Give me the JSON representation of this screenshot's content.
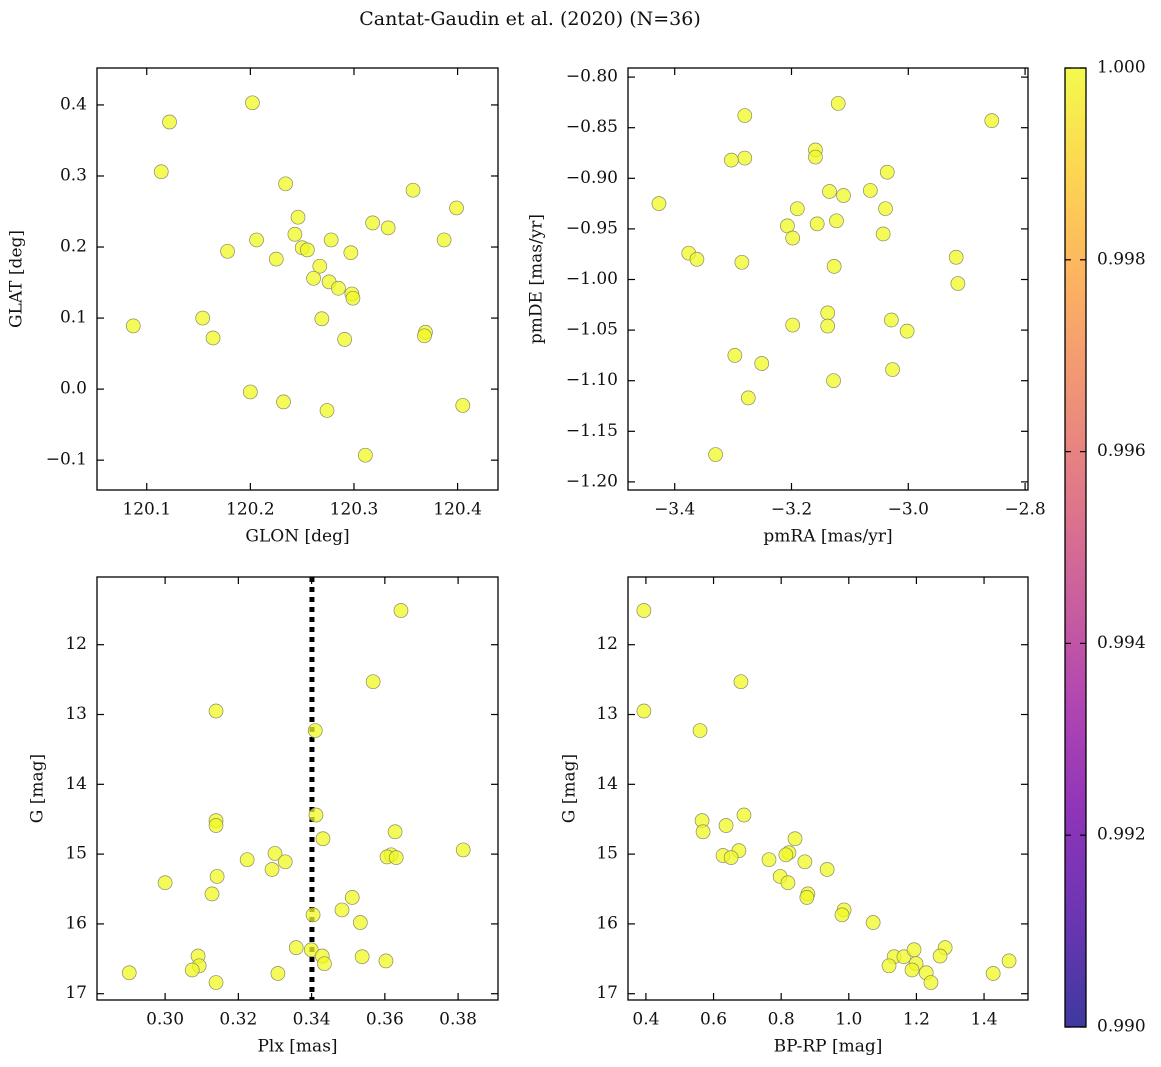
{
  "title": "Cantat-Gaudin et al. (2020) (N=36)",
  "chart_data": [
    {
      "type": "scatter",
      "xlabel": "GLON [deg]",
      "ylabel": "GLAT [deg]",
      "color": "#f0f921",
      "xlim": [
        120.052,
        120.439
      ],
      "ylim": [
        -0.142,
        0.452
      ],
      "xticks": [
        120.1,
        120.2,
        120.3,
        120.4
      ],
      "yticks": [
        {
          "value": -0.1,
          "label": "−0.1"
        },
        {
          "value": 0,
          "label": "0.0"
        },
        0.1,
        0.2,
        0.3,
        0.4
      ],
      "x": [
        120.202,
        120.122,
        120.114,
        120.234,
        120.357,
        120.399,
        120.246,
        120.318,
        120.333,
        120.243,
        120.25,
        120.255,
        120.206,
        120.278,
        120.387,
        120.178,
        120.297,
        120.225,
        120.267,
        120.261,
        120.276,
        120.285,
        120.298,
        120.299,
        120.269,
        120.154,
        120.087,
        120.369,
        120.368,
        120.164,
        120.291,
        120.2,
        120.232,
        120.274,
        120.405,
        120.311
      ],
      "y": [
        0.403,
        0.376,
        0.306,
        0.289,
        0.28,
        0.255,
        0.242,
        0.234,
        0.227,
        0.218,
        0.199,
        0.196,
        0.21,
        0.21,
        0.21,
        0.194,
        0.192,
        0.183,
        0.173,
        0.156,
        0.151,
        0.142,
        0.134,
        0.128,
        0.099,
        0.1,
        0.089,
        0.08,
        0.075,
        0.072,
        0.07,
        -0.004,
        -0.018,
        -0.03,
        -0.023,
        -0.093
      ]
    },
    {
      "type": "scatter",
      "xlabel": "pmRA [mas/yr]",
      "ylabel": "pmDE [mas/yr]",
      "color": "#f0f921",
      "xlim": [
        -3.48,
        -2.795
      ],
      "ylim": [
        -1.208,
        -0.791
      ],
      "xticks": [
        {
          "value": -3.4,
          "label": "−3.4"
        },
        {
          "value": -3.2,
          "label": "−3.2"
        },
        {
          "value": -3,
          "label": "−3.0"
        },
        {
          "value": -2.8,
          "label": "−2.8"
        }
      ],
      "yticks": [
        {
          "value": -1.2,
          "label": "−1.20"
        },
        {
          "value": -1.15,
          "label": "−1.15"
        },
        {
          "value": -1.1,
          "label": "−1.10"
        },
        {
          "value": -1.05,
          "label": "−1.05"
        },
        {
          "value": -1,
          "label": "−1.00"
        },
        {
          "value": -0.95,
          "label": "−0.95"
        },
        {
          "value": -0.9,
          "label": "−0.90"
        },
        {
          "value": -0.85,
          "label": "−0.85"
        },
        {
          "value": -0.8,
          "label": "−0.80"
        }
      ],
      "x": [
        -3.12,
        -3.28,
        -2.857,
        -3.159,
        -3.159,
        -3.28,
        -3.303,
        -3.036,
        -3.065,
        -3.135,
        -3.111,
        -3.427,
        -3.19,
        -3.039,
        -3.123,
        -3.156,
        -3.207,
        -3.198,
        -3.043,
        -3.376,
        -3.362,
        -2.918,
        -3.285,
        -3.127,
        -2.915,
        -3.029,
        -3.138,
        -3.138,
        -3.198,
        -3.002,
        -3.297,
        -3.251,
        -3.128,
        -3.027,
        -3.274,
        -3.33
      ],
      "y": [
        -0.826,
        -0.838,
        -0.843,
        -0.872,
        -0.879,
        -0.88,
        -0.882,
        -0.894,
        -0.912,
        -0.913,
        -0.917,
        -0.925,
        -0.93,
        -0.93,
        -0.942,
        -0.945,
        -0.947,
        -0.959,
        -0.955,
        -0.974,
        -0.98,
        -0.978,
        -0.983,
        -0.987,
        -1.004,
        -1.04,
        -1.033,
        -1.046,
        -1.045,
        -1.051,
        -1.075,
        -1.083,
        -1.1,
        -1.089,
        -1.117,
        -1.173
      ]
    },
    {
      "type": "scatter",
      "xlabel": "Plx [mas]",
      "ylabel": "G [mag]",
      "color": "#f0f921",
      "xlim": [
        0.2814,
        0.3909
      ],
      "ylim": [
        17.09,
        11.03
      ],
      "xticks": [
        {
          "value": 0.3,
          "label": "0.30"
        },
        0.32,
        0.34,
        0.36,
        0.38
      ],
      "yticks": [
        12,
        13,
        14,
        15,
        16,
        17
      ],
      "vline": 0.3401,
      "x": [
        0.3644,
        0.3568,
        0.3139,
        0.341,
        0.3139,
        0.3139,
        0.3412,
        0.3628,
        0.3431,
        0.3814,
        0.33,
        0.3617,
        0.3606,
        0.3631,
        0.3224,
        0.3328,
        0.3292,
        0.3142,
        0.3,
        0.3511,
        0.3128,
        0.3483,
        0.3404,
        0.3533,
        0.3358,
        0.3399,
        0.309,
        0.3429,
        0.3538,
        0.3603,
        0.3435,
        0.3093,
        0.3074,
        0.2902,
        0.3308,
        0.3139
      ],
      "y": [
        11.51,
        12.53,
        12.95,
        13.23,
        14.52,
        14.59,
        14.44,
        14.68,
        14.78,
        14.94,
        14.99,
        15.01,
        15.04,
        15.05,
        15.08,
        15.11,
        15.22,
        15.32,
        15.41,
        15.62,
        15.57,
        15.8,
        15.87,
        15.98,
        16.34,
        16.37,
        16.46,
        16.46,
        16.47,
        16.53,
        16.57,
        16.6,
        16.66,
        16.7,
        16.71,
        16.84
      ]
    },
    {
      "type": "scatter",
      "xlabel": "BP-RP [mag]",
      "ylabel": "G [mag]",
      "color": "#f0f921",
      "xlim": [
        0.347,
        1.53
      ],
      "ylim": [
        17.09,
        11.03
      ],
      "xticks": [
        0.4,
        0.6,
        0.8,
        {
          "value": 1,
          "label": "1.0"
        },
        1.2,
        1.4
      ],
      "yticks": [
        12,
        13,
        14,
        15,
        16,
        17
      ],
      "x": [
        0.394,
        0.681,
        0.394,
        0.56,
        0.69,
        0.566,
        0.569,
        0.637,
        0.841,
        0.675,
        0.823,
        0.814,
        0.628,
        0.652,
        0.764,
        0.87,
        0.936,
        0.797,
        0.82,
        0.879,
        0.876,
        0.986,
        0.98,
        1.072,
        1.285,
        1.27,
        1.134,
        1.163,
        1.474,
        1.193,
        1.199,
        1.119,
        1.187,
        1.229,
        1.427,
        1.243
      ],
      "y": [
        11.51,
        12.53,
        12.95,
        13.23,
        14.44,
        14.52,
        14.68,
        14.59,
        14.78,
        14.95,
        14.98,
        15.01,
        15.02,
        15.05,
        15.08,
        15.11,
        15.22,
        15.32,
        15.41,
        15.57,
        15.62,
        15.8,
        15.87,
        15.98,
        16.34,
        16.46,
        16.47,
        16.47,
        16.53,
        16.37,
        16.57,
        16.6,
        16.66,
        16.7,
        16.71,
        16.84
      ]
    }
  ],
  "colorbar": {
    "lim": [
      0.99,
      1.0
    ],
    "ticks": [
      {
        "value": 0.99,
        "label": "0.990"
      },
      0.992,
      0.994,
      0.996,
      0.998,
      {
        "value": 1,
        "label": "1.000"
      }
    ],
    "colors": [
      "#0d0887",
      "#46039f",
      "#7201a8",
      "#9c179e",
      "#bd3786",
      "#d8576b",
      "#ed7953",
      "#fb9f3a",
      "#fdca26",
      "#f0f921"
    ]
  }
}
